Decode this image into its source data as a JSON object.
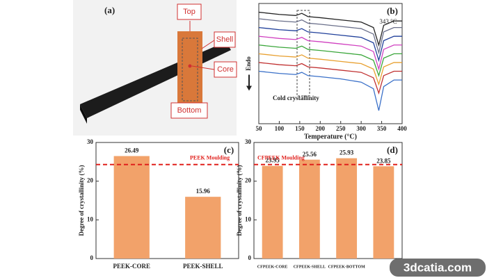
{
  "photo": {
    "label": "(a)",
    "callouts": [
      "Top",
      "Shell",
      "Core",
      "Bottom"
    ]
  },
  "chart_data": [
    {
      "type": "line",
      "panel": "(b)",
      "xlabel": "Temperature (°C)",
      "ylabel": "Endo",
      "annotations": [
        "343 °C",
        "Cold crystallinity"
      ],
      "x": [
        50,
        100,
        140,
        155,
        170,
        200,
        250,
        300,
        330,
        343,
        355,
        380,
        400
      ],
      "xlim": [
        50,
        400
      ],
      "xticks": [
        50,
        100,
        150,
        200,
        250,
        300,
        350,
        400
      ],
      "ylim": [
        -10,
        100
      ],
      "series": [
        {
          "color": "#222222",
          "values": [
            92,
            90,
            89,
            91,
            88,
            87,
            85,
            83,
            78,
            62,
            80,
            84,
            84
          ]
        },
        {
          "color": "#6a6f8a",
          "values": [
            86,
            84,
            83,
            85,
            82,
            81,
            79,
            77,
            72,
            55,
            74,
            78,
            78
          ]
        },
        {
          "color": "#1f3f9a",
          "values": [
            78,
            76,
            75,
            77,
            74,
            73,
            71,
            69,
            64,
            48,
            66,
            70,
            70
          ]
        },
        {
          "color": "#d040c0",
          "values": [
            70,
            68,
            67,
            69,
            66,
            65,
            63,
            61,
            56,
            40,
            58,
            62,
            62
          ]
        },
        {
          "color": "#3aa63a",
          "values": [
            62,
            60,
            59,
            61,
            58,
            57,
            55,
            53,
            48,
            34,
            50,
            54,
            54
          ]
        },
        {
          "color": "#e8a030",
          "values": [
            54,
            52,
            51,
            53,
            50,
            49,
            47,
            45,
            40,
            26,
            42,
            46,
            46
          ]
        },
        {
          "color": "#c03030",
          "values": [
            46,
            44,
            43,
            45,
            42,
            41,
            39,
            37,
            32,
            18,
            34,
            38,
            38
          ]
        },
        {
          "color": "#3a70c8",
          "values": [
            38,
            36,
            35,
            37,
            34,
            33,
            31,
            28,
            22,
            2,
            24,
            30,
            30
          ]
        }
      ]
    },
    {
      "type": "bar",
      "panel": "(c)",
      "ylabel": "Degree of crystallinity (%)",
      "categories": [
        "PEEK-CORE",
        "PEEK-SHELL"
      ],
      "values": [
        26.49,
        15.96
      ],
      "color": "#f2a26a",
      "ylim": [
        0,
        30
      ],
      "yticks": [
        0,
        10,
        20,
        30
      ],
      "reference": {
        "label": "PEEK Moulding",
        "value": 24.3,
        "color": "#e0201c"
      }
    },
    {
      "type": "bar",
      "panel": "(d)",
      "ylabel": "Degree of crystallinity (%)",
      "categories": [
        "CFPEEK-CORE",
        "CFPEEK-SHELL",
        "CFPEEK-BOTTOM",
        null
      ],
      "values": [
        23.95,
        25.56,
        25.93,
        23.85
      ],
      "color": "#f2a26a",
      "ylim": [
        0,
        30
      ],
      "yticks": [
        0,
        10,
        20,
        30
      ],
      "reference": {
        "label": "CFPEEK Moulding",
        "value": 24.3,
        "color": "#e0201c"
      }
    }
  ],
  "watermark": "3dcatia.com"
}
